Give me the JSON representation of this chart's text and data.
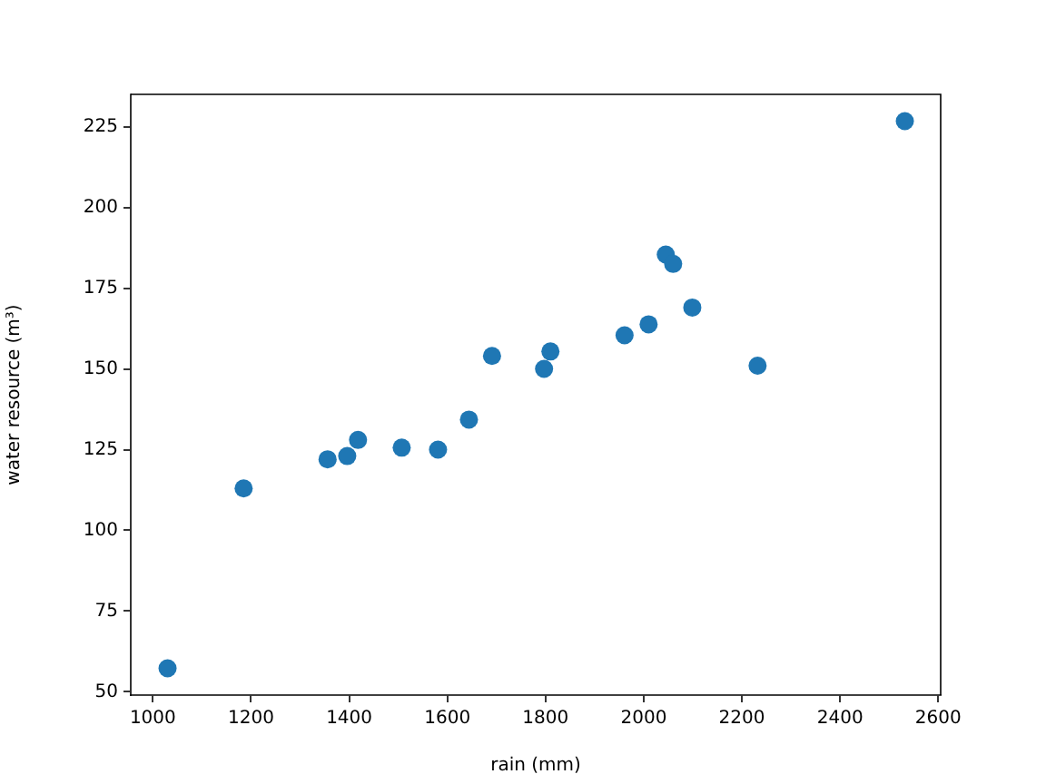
{
  "chart_data": {
    "type": "scatter",
    "xlabel": "rain (mm)",
    "ylabel": "water resource (m³)",
    "x": [
      1030,
      1185,
      1356,
      1396,
      1418,
      1507,
      1581,
      1644,
      1691,
      1797,
      1810,
      1961,
      2010,
      2045,
      2060,
      2099,
      2232,
      2532
    ],
    "values": [
      57.3,
      113,
      122,
      123,
      128,
      125.6,
      125,
      134.3,
      154,
      150,
      155.4,
      160.4,
      163.8,
      185.4,
      182.5,
      169,
      151,
      226.7
    ],
    "color": "#1f77b4",
    "marker": "circle",
    "grid": false,
    "xlim": [
      955,
      2605
    ],
    "ylim": [
      49,
      235
    ],
    "xticks": [
      1000,
      1200,
      1400,
      1600,
      1800,
      2000,
      2200,
      2400,
      2600
    ],
    "yticks": [
      50,
      75,
      100,
      125,
      150,
      175,
      200,
      225
    ]
  }
}
